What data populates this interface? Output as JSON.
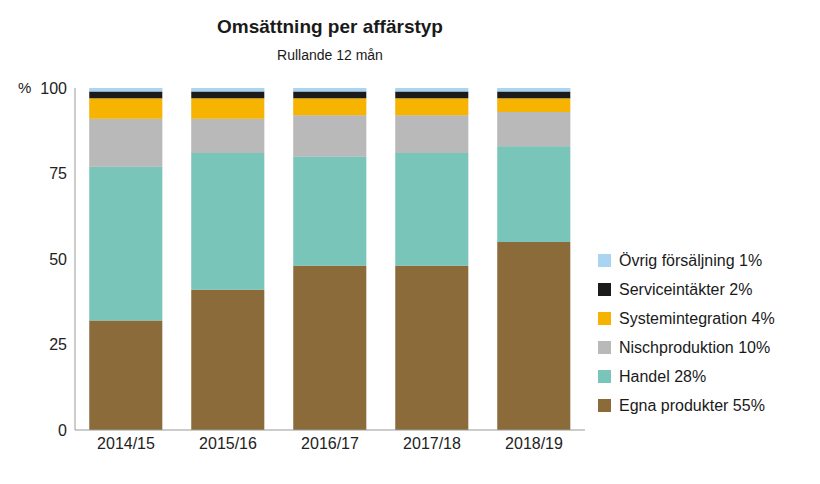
{
  "chart_data": {
    "type": "bar",
    "title": "Omsättning per affärstyp",
    "subtitle": "Rullande 12 mån",
    "ylabel": "%",
    "categories": [
      "2014/15",
      "2015/16",
      "2016/17",
      "2017/18",
      "2018/19"
    ],
    "series": [
      {
        "name": "Egna produkter 55%",
        "color": "#8b6b3a",
        "values": [
          32,
          41,
          48,
          48,
          55
        ]
      },
      {
        "name": "Handel 28%",
        "color": "#79c5b9",
        "values": [
          45,
          40,
          32,
          33,
          28
        ]
      },
      {
        "name": "Nischproduktion 10%",
        "color": "#b9b9b9",
        "values": [
          14,
          10,
          12,
          11,
          10
        ]
      },
      {
        "name": "Systemintegration 4%",
        "color": "#f6b400",
        "values": [
          6,
          6,
          5,
          5,
          4
        ]
      },
      {
        "name": "Serviceintäkter 2%",
        "color": "#1b1b1b",
        "values": [
          2,
          2,
          2,
          2,
          2
        ]
      },
      {
        "name": "Övrig försäljning 1%",
        "color": "#a9d5f2",
        "values": [
          1,
          1,
          1,
          1,
          1
        ]
      }
    ],
    "ylim": [
      0,
      100
    ],
    "yticks": [
      0,
      25,
      50,
      75,
      100
    ],
    "stacked": true,
    "grid": false,
    "legend": "right"
  }
}
